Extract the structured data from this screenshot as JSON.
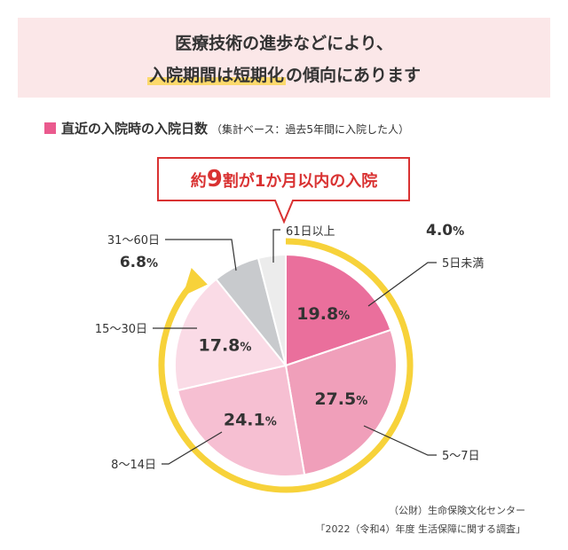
{
  "header": {
    "line1": "医療技術の進歩などにより、",
    "line2_highlight": "入院期間は短期化",
    "line2_rest": "の傾向にあります"
  },
  "chart_heading": {
    "title": "直近の入院時の入院日数",
    "note": "（集計ベース：過去5年間に入院した人）"
  },
  "callout": {
    "prefix": "約",
    "number": "9",
    "suffix": "割が1か月以内の入院"
  },
  "chart_data": {
    "type": "pie",
    "title": "直近の入院時の入院日数",
    "unit": "%",
    "slices": [
      {
        "label": "5日未満",
        "value": 19.8,
        "value_text": "19.8",
        "color": "#ea6f9c"
      },
      {
        "label": "5〜7日",
        "value": 27.5,
        "value_text": "27.5",
        "color": "#f09fba"
      },
      {
        "label": "8〜14日",
        "value": 24.1,
        "value_text": "24.1",
        "color": "#f6bfd2"
      },
      {
        "label": "15〜30日",
        "value": 17.8,
        "value_text": "17.8",
        "color": "#fadbe6"
      },
      {
        "label": "31〜60日",
        "value": 6.8,
        "value_text": "6.8",
        "color": "#c8cacd"
      },
      {
        "label": "61日以上",
        "value": 4.0,
        "value_text": "4.0",
        "color": "#ececec"
      }
    ],
    "arrow_color": "#f7d23a",
    "callout_color": "#d93232"
  },
  "source": {
    "line1": "（公財）生命保険文化センター",
    "line2": "「2022（令和4）年度 生活保障に関する調査」"
  }
}
